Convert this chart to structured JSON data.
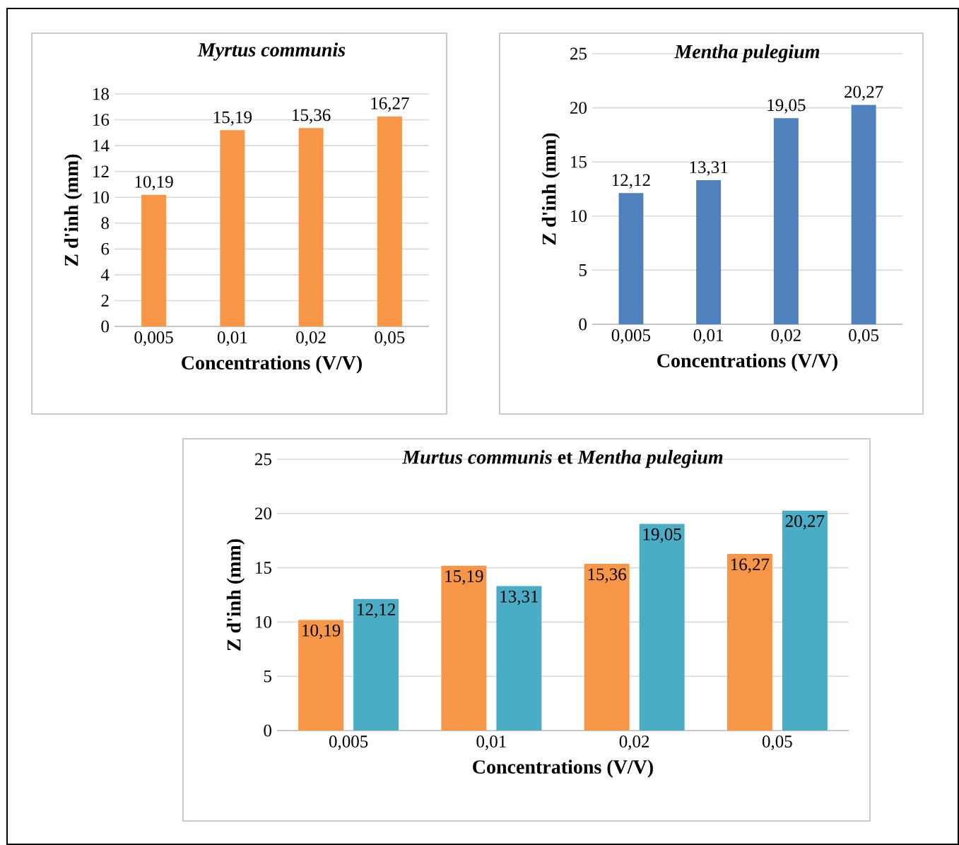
{
  "chart_data": [
    {
      "type": "bar",
      "title": "Myrtus communis",
      "xlabel": "Concentrations (V/V)",
      "ylabel": "Z d'inh (mm)",
      "categories": [
        "0,005",
        "0,01",
        "0,02",
        "0,05"
      ],
      "values": [
        10.19,
        15.19,
        15.36,
        16.27
      ],
      "value_labels": [
        "10,19",
        "15,19",
        "15,36",
        "16,27"
      ],
      "color": "#f79646",
      "ylim": [
        0,
        18
      ],
      "yticks": [
        0,
        2,
        4,
        6,
        8,
        10,
        12,
        14,
        16,
        18
      ],
      "grid": "y"
    },
    {
      "type": "bar",
      "title": "Mentha pulegium",
      "xlabel": "Concentrations (V/V)",
      "ylabel": "Z d'inh (mm)",
      "categories": [
        "0,005",
        "0,01",
        "0,02",
        "0,05"
      ],
      "values": [
        12.12,
        13.31,
        19.05,
        20.27
      ],
      "value_labels": [
        "12,12",
        "13,31",
        "19,05",
        "20,27"
      ],
      "color": "#4f81bd",
      "ylim": [
        0,
        25
      ],
      "yticks": [
        0,
        5,
        10,
        15,
        20,
        25
      ],
      "grid": "y"
    },
    {
      "type": "bar",
      "title": "*Murtus communis* et *Mentha pulegium*",
      "xlabel": "Concentrations (V/V)",
      "ylabel": "Z d'inh (mm)",
      "categories": [
        "0,005",
        "0,01",
        "0,02",
        "0,05"
      ],
      "ylim": [
        0,
        25
      ],
      "yticks": [
        0,
        5,
        10,
        15,
        20,
        25
      ],
      "grid": "y",
      "series": [
        {
          "color": "#f79646",
          "values": [
            10.19,
            15.19,
            15.36,
            16.27
          ],
          "value_labels": [
            "10,19",
            "15,19",
            "15,36",
            "16,27"
          ]
        },
        {
          "color": "#4bacc6",
          "values": [
            12.12,
            13.31,
            19.05,
            20.27
          ],
          "value_labels": [
            "12,12",
            "13,31",
            "19,05",
            "20,27"
          ]
        }
      ]
    }
  ]
}
